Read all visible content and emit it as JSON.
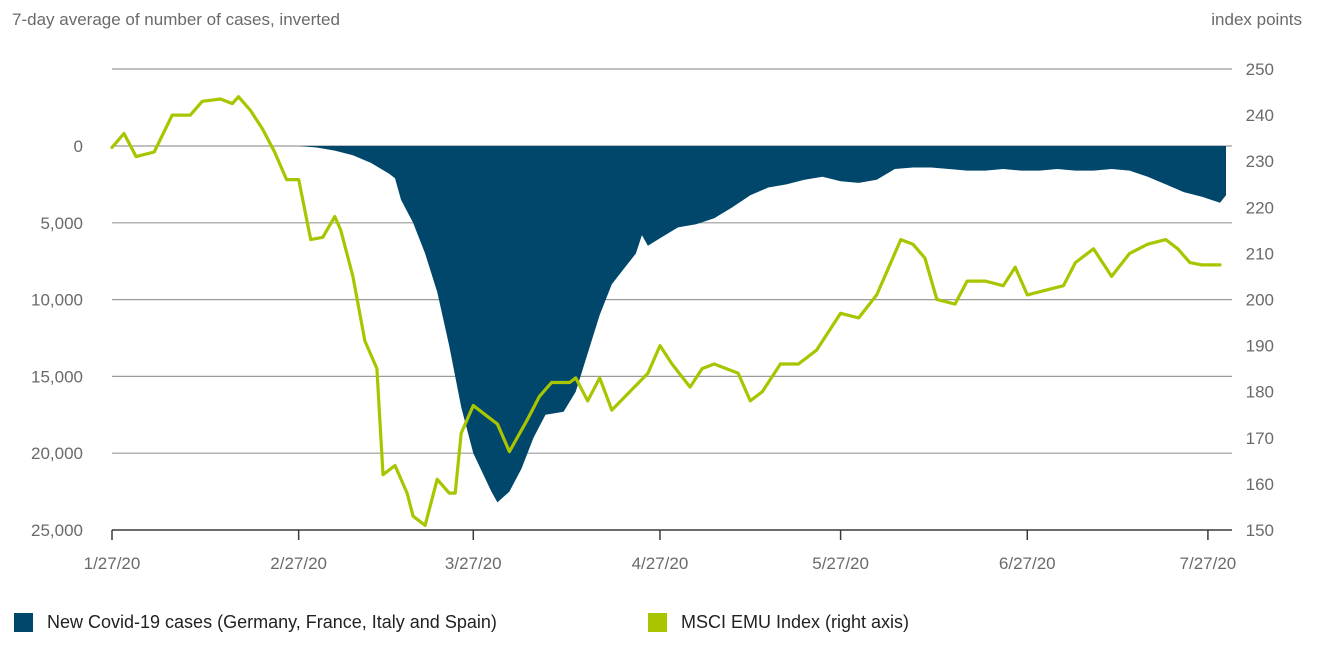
{
  "chart_data": {
    "type": "area+line",
    "left_axis_title": "7-day average of number of cases, inverted",
    "right_axis_title": "index points",
    "left_ticks": [
      "0",
      "5,000",
      "10,000",
      "15,000",
      "20,000",
      "25,000"
    ],
    "left_tick_values": [
      0,
      5000,
      10000,
      15000,
      20000,
      25000
    ],
    "right_ticks": [
      "250",
      "240",
      "230",
      "220",
      "210",
      "200",
      "190",
      "180",
      "170",
      "160",
      "150"
    ],
    "right_tick_values": [
      250,
      240,
      230,
      220,
      210,
      200,
      190,
      180,
      170,
      160,
      150
    ],
    "x_ticks": [
      "1/27/20",
      "2/27/20",
      "3/27/20",
      "4/27/20",
      "5/27/20",
      "6/27/20",
      "7/27/20"
    ],
    "left_ylim": [
      0,
      25000
    ],
    "right_ylim": [
      150,
      250
    ],
    "colors": {
      "cases": "#00476b",
      "index": "#a8c500",
      "grid": "#9a9a9a",
      "axis": "#3a3a3a"
    },
    "legend": [
      {
        "label": "New Covid-19 cases (Germany, France, Italy and Spain)",
        "color": "#00476b"
      },
      {
        "label": "MSCI EMU Index (right axis)",
        "color": "#a8c500"
      }
    ],
    "series": [
      {
        "name": "New Covid-19 cases (Germany, France, Italy and Spain)",
        "axis": "left",
        "points": [
          [
            "2/27/20",
            0
          ],
          [
            "3/1/20",
            100
          ],
          [
            "3/4/20",
            300
          ],
          [
            "3/7/20",
            600
          ],
          [
            "3/10/20",
            1100
          ],
          [
            "3/13/20",
            1800
          ],
          [
            "3/14/20",
            2100
          ],
          [
            "3/15/20",
            3500
          ],
          [
            "3/17/20",
            5000
          ],
          [
            "3/19/20",
            7000
          ],
          [
            "3/21/20",
            9500
          ],
          [
            "3/23/20",
            13000
          ],
          [
            "3/25/20",
            17000
          ],
          [
            "3/27/20",
            20000
          ],
          [
            "3/30/20",
            22500
          ],
          [
            "3/31/20",
            23200
          ],
          [
            "4/2/20",
            22500
          ],
          [
            "4/4/20",
            21000
          ],
          [
            "4/6/20",
            19000
          ],
          [
            "4/8/20",
            17500
          ],
          [
            "4/11/20",
            17300
          ],
          [
            "4/13/20",
            16000
          ],
          [
            "4/15/20",
            13500
          ],
          [
            "4/17/20",
            11000
          ],
          [
            "4/19/20",
            9000
          ],
          [
            "4/21/20",
            8000
          ],
          [
            "4/23/20",
            7000
          ],
          [
            "4/24/20",
            5800
          ],
          [
            "4/25/20",
            6500
          ],
          [
            "4/27/20",
            6000
          ],
          [
            "4/30/20",
            5300
          ],
          [
            "5/3/20",
            5100
          ],
          [
            "5/6/20",
            4700
          ],
          [
            "5/9/20",
            4000
          ],
          [
            "5/12/20",
            3200
          ],
          [
            "5/15/20",
            2700
          ],
          [
            "5/18/20",
            2500
          ],
          [
            "5/21/20",
            2200
          ],
          [
            "5/24/20",
            2000
          ],
          [
            "5/27/20",
            2300
          ],
          [
            "5/30/20",
            2400
          ],
          [
            "6/2/20",
            2200
          ],
          [
            "6/5/20",
            1500
          ],
          [
            "6/8/20",
            1400
          ],
          [
            "6/11/20",
            1400
          ],
          [
            "6/14/20",
            1500
          ],
          [
            "6/17/20",
            1600
          ],
          [
            "6/20/20",
            1600
          ],
          [
            "6/23/20",
            1500
          ],
          [
            "6/26/20",
            1600
          ],
          [
            "6/29/20",
            1600
          ],
          [
            "7/2/20",
            1500
          ],
          [
            "7/5/20",
            1600
          ],
          [
            "7/8/20",
            1600
          ],
          [
            "7/11/20",
            1500
          ],
          [
            "7/14/20",
            1600
          ],
          [
            "7/17/20",
            2000
          ],
          [
            "7/20/20",
            2500
          ],
          [
            "7/23/20",
            3000
          ],
          [
            "7/26/20",
            3300
          ],
          [
            "7/29/20",
            3700
          ],
          [
            "7/30/20",
            3200
          ],
          [
            "7/30/20",
            0
          ]
        ]
      },
      {
        "name": "MSCI EMU Index (right axis)",
        "axis": "right",
        "points": [
          [
            "1/27/20",
            233
          ],
          [
            "1/29/20",
            236
          ],
          [
            "1/31/20",
            231
          ],
          [
            "2/3/20",
            232
          ],
          [
            "2/6/20",
            240
          ],
          [
            "2/9/20",
            240
          ],
          [
            "2/11/20",
            243
          ],
          [
            "2/14/20",
            243.5
          ],
          [
            "2/16/20",
            242.5
          ],
          [
            "2/17/20",
            244
          ],
          [
            "2/19/20",
            241
          ],
          [
            "2/21/20",
            237
          ],
          [
            "2/23/20",
            232
          ],
          [
            "2/25/20",
            226
          ],
          [
            "2/27/20",
            226
          ],
          [
            "2/29/20",
            213
          ],
          [
            "3/2/20",
            213.5
          ],
          [
            "3/4/20",
            218
          ],
          [
            "3/5/20",
            215
          ],
          [
            "3/7/20",
            205
          ],
          [
            "3/9/20",
            191
          ],
          [
            "3/11/20",
            185
          ],
          [
            "3/12/20",
            162
          ],
          [
            "3/14/20",
            164
          ],
          [
            "3/16/20",
            158
          ],
          [
            "3/17/20",
            153
          ],
          [
            "3/19/20",
            151
          ],
          [
            "3/21/20",
            161
          ],
          [
            "3/23/20",
            158
          ],
          [
            "3/24/20",
            158
          ],
          [
            "3/25/20",
            171
          ],
          [
            "3/27/20",
            177
          ],
          [
            "3/29/20",
            175
          ],
          [
            "3/31/20",
            173
          ],
          [
            "4/2/20",
            167
          ],
          [
            "4/5/20",
            174
          ],
          [
            "4/7/20",
            179
          ],
          [
            "4/9/20",
            182
          ],
          [
            "4/12/20",
            182
          ],
          [
            "4/13/20",
            183
          ],
          [
            "4/15/20",
            178
          ],
          [
            "4/17/20",
            183
          ],
          [
            "4/19/20",
            176
          ],
          [
            "4/22/20",
            180
          ],
          [
            "4/25/20",
            184
          ],
          [
            "4/27/20",
            190
          ],
          [
            "4/29/20",
            186
          ],
          [
            "5/2/20",
            181
          ],
          [
            "5/4/20",
            185
          ],
          [
            "5/6/20",
            186
          ],
          [
            "5/8/20",
            185
          ],
          [
            "5/10/20",
            184
          ],
          [
            "5/12/20",
            178
          ],
          [
            "5/14/20",
            180
          ],
          [
            "5/17/20",
            186
          ],
          [
            "5/20/20",
            186
          ],
          [
            "5/23/20",
            189
          ],
          [
            "5/27/20",
            197
          ],
          [
            "5/30/20",
            196
          ],
          [
            "6/2/20",
            201
          ],
          [
            "6/4/20",
            207
          ],
          [
            "6/6/20",
            213
          ],
          [
            "6/8/20",
            212
          ],
          [
            "6/10/20",
            209
          ],
          [
            "6/12/20",
            200
          ],
          [
            "6/15/20",
            199
          ],
          [
            "6/17/20",
            204
          ],
          [
            "6/20/20",
            204
          ],
          [
            "6/23/20",
            203
          ],
          [
            "6/25/20",
            207
          ],
          [
            "6/27/20",
            201
          ],
          [
            "6/30/20",
            202
          ],
          [
            "7/3/20",
            203
          ],
          [
            "7/5/20",
            208
          ],
          [
            "7/8/20",
            211
          ],
          [
            "7/11/20",
            205
          ],
          [
            "7/14/20",
            210
          ],
          [
            "7/17/20",
            212
          ],
          [
            "7/20/20",
            213
          ],
          [
            "7/22/20",
            211
          ],
          [
            "7/24/20",
            208
          ],
          [
            "7/26/20",
            207.5
          ],
          [
            "7/29/20",
            207.5
          ]
        ]
      }
    ]
  }
}
